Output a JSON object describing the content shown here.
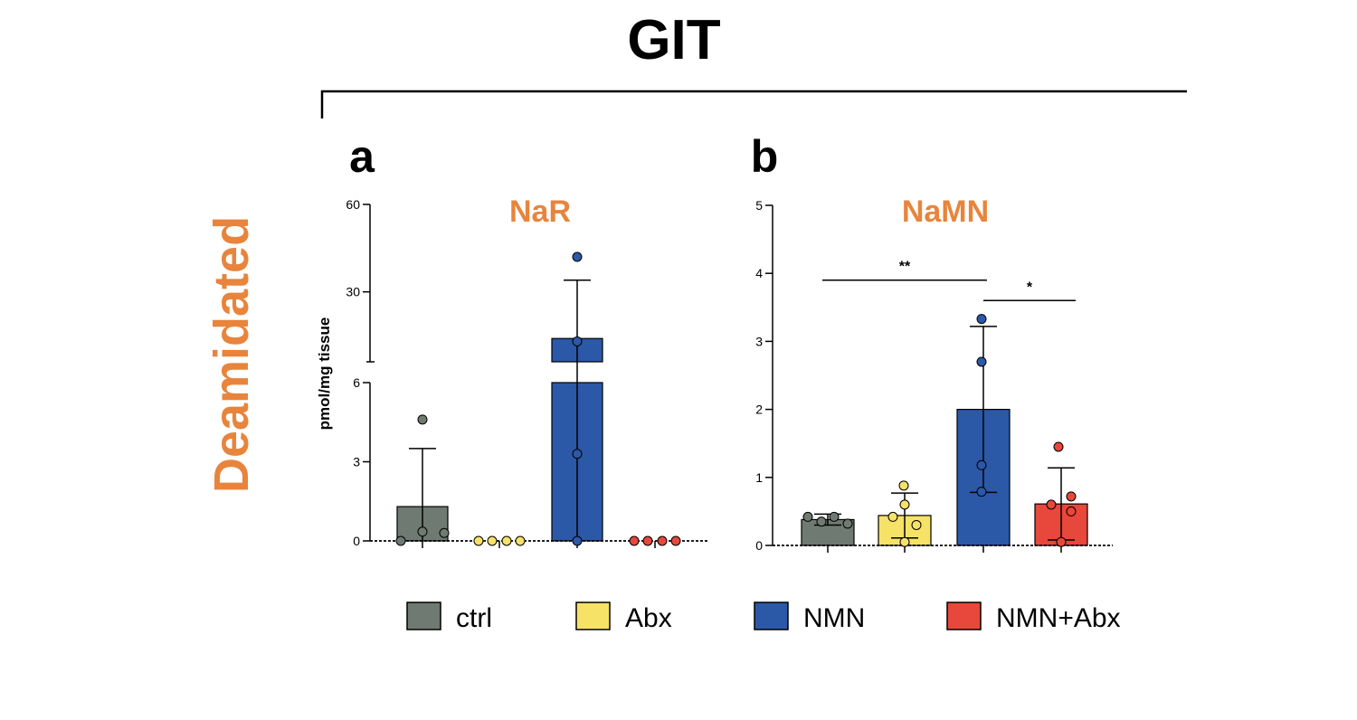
{
  "figure": {
    "header": "GIT",
    "row_label": "Deamidated",
    "ylabel": "pmol/mg tissue"
  },
  "colors": {
    "accent_orange": "#E8843C",
    "ctrl": "#6F7A72",
    "Abx": "#F6E266",
    "NMN": "#2C58A8",
    "NMN+Abx": "#E8473B"
  },
  "legend": [
    {
      "label": "ctrl",
      "color": "#6F7A72"
    },
    {
      "label": "Abx",
      "color": "#F6E266"
    },
    {
      "label": "NMN",
      "color": "#2C58A8"
    },
    {
      "label": "NMN+Abx",
      "color": "#E8473B"
    }
  ],
  "chart_data": [
    {
      "type": "bar",
      "panel": "a",
      "title": "NaR",
      "ylabel": "pmol/mg tissue",
      "categories": [
        "ctrl",
        "Abx",
        "NMN",
        "NMN+Abx"
      ],
      "y_axis": "broken",
      "ylim_lower": [
        0,
        6
      ],
      "ylim_upper": [
        6,
        60
      ],
      "yticks": [
        "0",
        "3",
        "6",
        "30",
        "60"
      ],
      "values": [
        1.3,
        0,
        14,
        0
      ],
      "error": [
        2.2,
        0,
        20,
        0
      ],
      "points": [
        [
          0,
          0.35,
          0.3,
          4.6
        ],
        [
          0,
          0,
          0,
          0
        ],
        [
          0,
          3.3,
          42,
          13
        ],
        [
          0,
          0,
          0,
          0
        ]
      ],
      "grid": false,
      "legend": "bottom"
    },
    {
      "type": "bar",
      "panel": "b",
      "title": "NaMN",
      "categories": [
        "ctrl",
        "Abx",
        "NMN",
        "NMN+Abx"
      ],
      "ylim": [
        0,
        5
      ],
      "yticks": [
        "0",
        "1",
        "2",
        "3",
        "4",
        "5"
      ],
      "values": [
        0.38,
        0.44,
        2.0,
        0.61
      ],
      "error": [
        0.08,
        0.33,
        1.22,
        0.53
      ],
      "points": [
        [
          0.42,
          0.35,
          0.42,
          0.32
        ],
        [
          0.88,
          0.6,
          0.42,
          0.3,
          0.05
        ],
        [
          3.33,
          2.7,
          1.18,
          0.79
        ],
        [
          1.45,
          0.72,
          0.6,
          0.5,
          0.05
        ]
      ],
      "significance": [
        {
          "from": "ctrl",
          "to": "NMN",
          "label": "**",
          "y": 3.9
        },
        {
          "from": "NMN",
          "to": "NMN+Abx",
          "label": "*",
          "y": 3.6
        }
      ],
      "grid": false,
      "legend": "bottom"
    }
  ]
}
